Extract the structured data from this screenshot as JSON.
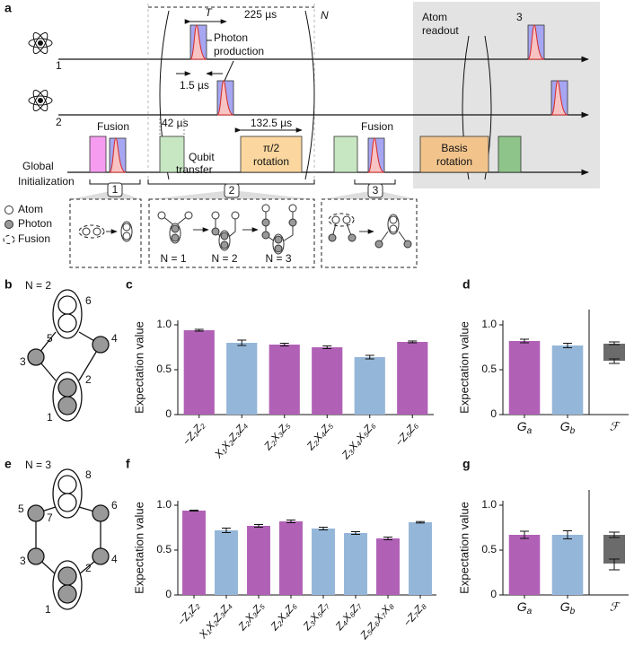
{
  "panel_a": {
    "label": "a",
    "period": "T",
    "cycle_time": "225 µs",
    "repeat": "N",
    "photon_production": [
      "Photon",
      "production"
    ],
    "pulse_width": "1.5 µs",
    "atom_readout": [
      "Atom",
      "readout"
    ],
    "readout_repeat": "3",
    "atoms": [
      "1",
      "2"
    ],
    "fusion": "Fusion",
    "transfer_time": "42 µs",
    "rotation_time": "132.5 µs",
    "global": "Global",
    "qubit_transfer": [
      "Qubit",
      "transfer"
    ],
    "pi_rotation": [
      "π/2",
      "rotation"
    ],
    "fusion_2": "Fusion",
    "basis_rotation": [
      "Basis",
      "rotation"
    ],
    "initialization": "Initialization",
    "steps": [
      "1",
      "2",
      "3"
    ],
    "legend": [
      "Atom",
      "Photon",
      "Fusion"
    ],
    "steps_n": [
      "N = 1",
      "N = 2",
      "N = 3"
    ]
  },
  "panel_b": {
    "label": "b",
    "title": "N = 2",
    "nodes": [
      "1",
      "2",
      "3",
      "4",
      "5",
      "6"
    ]
  },
  "panel_e": {
    "label": "e",
    "title": "N = 3",
    "nodes": [
      "1",
      "2",
      "3",
      "4",
      "5",
      "6",
      "7",
      "8"
    ]
  },
  "chart_data": [
    {
      "type": "bar",
      "panel": "c",
      "ylabel": "Expectation value",
      "categories": [
        "−Z₁Z₂",
        "X₁X₂Z₃Z₄",
        "Z₂X₃Z₅",
        "Z₂X₄Z₅",
        "Z₃X₄X₅Z₆",
        "−Z₅Z₆"
      ],
      "values": [
        0.94,
        0.8,
        0.78,
        0.75,
        0.64,
        0.81
      ],
      "errors": [
        0.01,
        0.03,
        0.015,
        0.015,
        0.02,
        0.01
      ],
      "colors": [
        "#b061b6",
        "#94b6d8",
        "#b061b6",
        "#b061b6",
        "#94b6d8",
        "#b061b6"
      ],
      "ylim": [
        0,
        1.05
      ],
      "yticks": [
        0,
        0.5,
        {
          "value": 1,
          "label": "1.0"
        }
      ]
    },
    {
      "type": "bar",
      "panel": "d",
      "ylabel": "Expectation value",
      "categories": [
        {
          "base": "G",
          "sub": "a"
        },
        {
          "base": "G",
          "sub": "b"
        }
      ],
      "values": [
        0.82,
        0.77
      ],
      "errors": [
        0.02,
        0.025
      ],
      "colors": [
        "#b061b6",
        "#94b6d8"
      ],
      "box": {
        "category": "ℱ",
        "lower": 0.6,
        "upper": 0.79,
        "lower_error": [
          0.57,
          0.62
        ],
        "upper_error": [
          0.78,
          0.81
        ],
        "color": "#6b6b6b"
      },
      "ylim": [
        0,
        1.05
      ],
      "yticks": [
        0,
        0.5,
        {
          "value": 1,
          "label": "1.0"
        }
      ]
    },
    {
      "type": "bar",
      "panel": "f",
      "ylabel": "Expectation value",
      "categories": [
        "−Z₁Z₂",
        "X₁X₂Z₃Z₄",
        "Z₂X₃Z₅",
        "Z₂X₄Z₆",
        "Z₃X₅Z₇",
        "Z₄X₆Z₇",
        "Z₅Z₆X₇X₈",
        "−Z₇Z₈"
      ],
      "values": [
        0.94,
        0.72,
        0.77,
        0.82,
        0.74,
        0.69,
        0.63,
        0.81
      ],
      "errors": [
        0.005,
        0.025,
        0.015,
        0.015,
        0.015,
        0.015,
        0.015,
        0.008
      ],
      "colors": [
        "#b061b6",
        "#94b6d8",
        "#b061b6",
        "#b061b6",
        "#94b6d8",
        "#94b6d8",
        "#b061b6",
        "#94b6d8"
      ],
      "ylim": [
        0,
        1.05
      ],
      "yticks": [
        0,
        0.5,
        {
          "value": 1,
          "label": "1.0"
        }
      ]
    },
    {
      "type": "bar",
      "panel": "g",
      "ylabel": "Expectation value",
      "categories": [
        {
          "base": "G",
          "sub": "a"
        },
        {
          "base": "G",
          "sub": "b"
        }
      ],
      "values": [
        0.67,
        0.67
      ],
      "errors": [
        0.04,
        0.045
      ],
      "colors": [
        "#b061b6",
        "#94b6d8"
      ],
      "box": {
        "category": "ℱ",
        "lower": 0.35,
        "upper": 0.67,
        "lower_error": [
          0.28,
          0.4
        ],
        "upper_error": [
          0.64,
          0.7
        ],
        "color": "#6b6b6b"
      },
      "ylim": [
        0,
        1.05
      ],
      "yticks": [
        0,
        0.5,
        {
          "value": 1,
          "label": "1.0"
        }
      ]
    }
  ]
}
